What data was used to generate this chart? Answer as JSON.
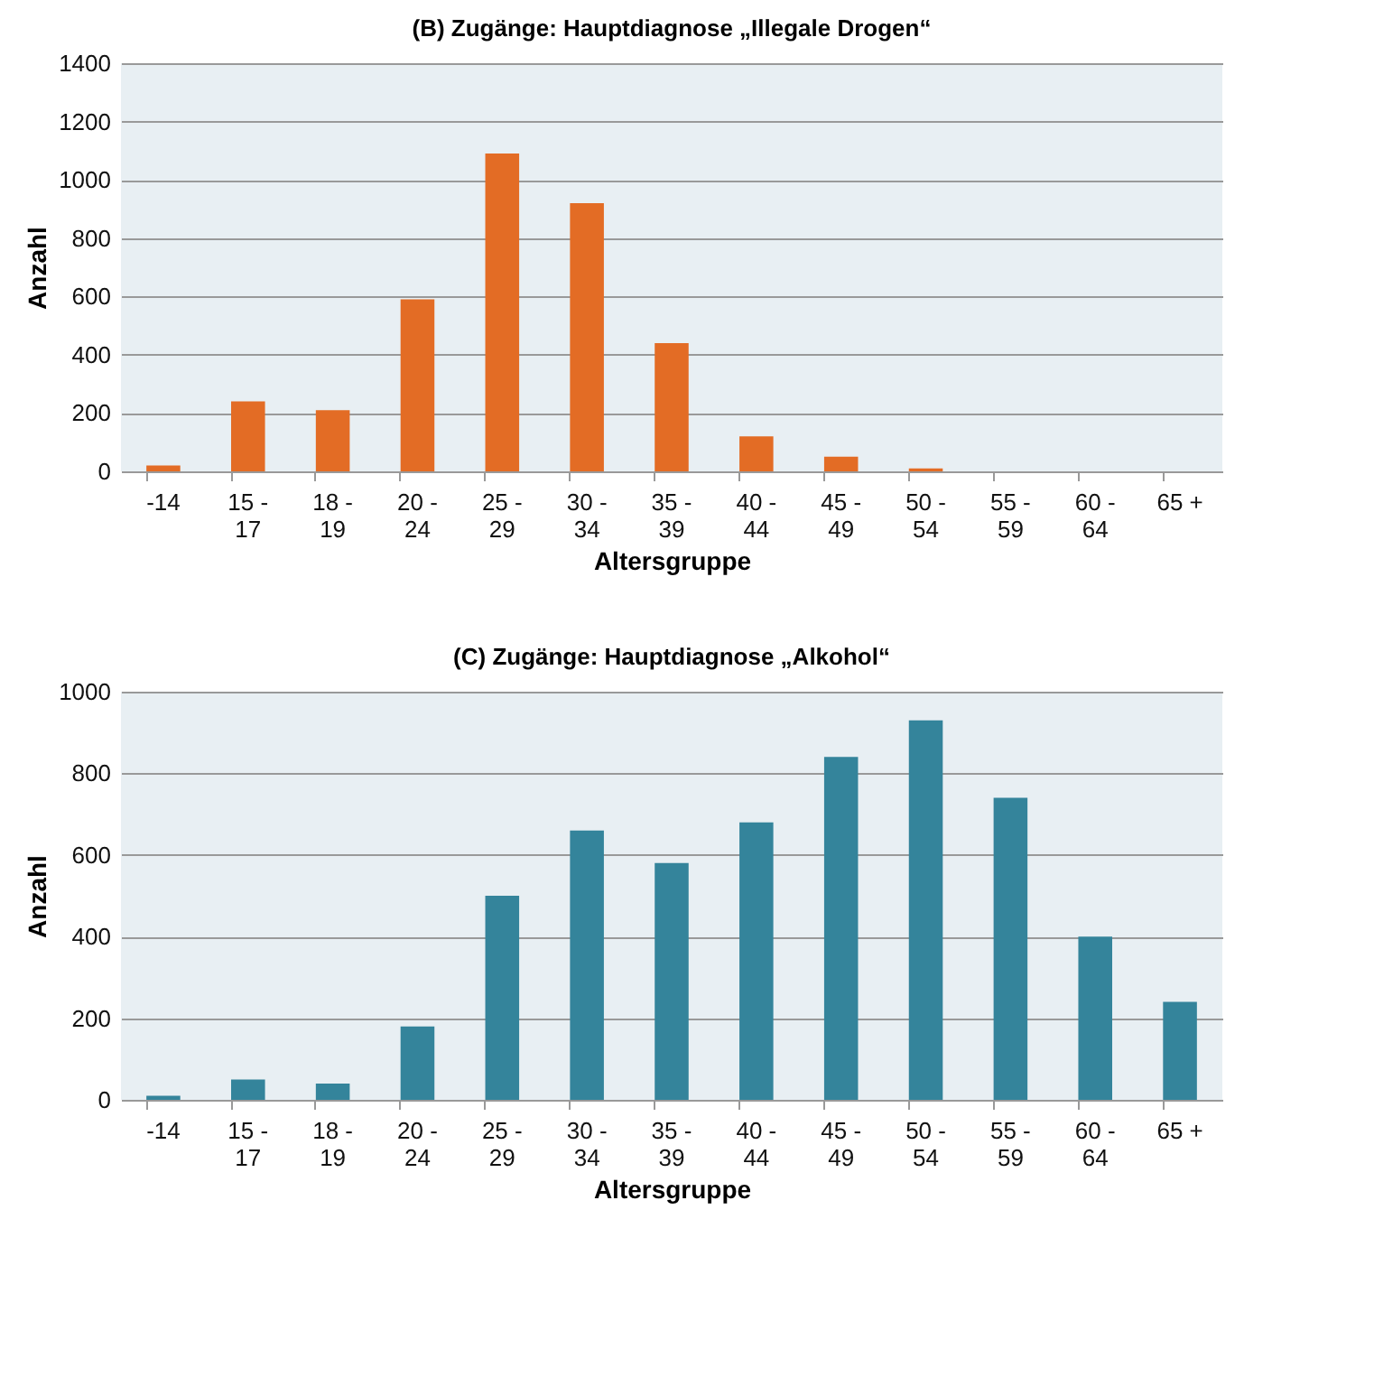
{
  "chart_data": [
    {
      "type": "bar",
      "title": "(B)  Zugänge:  Hauptdiagnose „Illegale Drogen“",
      "xlabel": "Altersgruppe",
      "ylabel": "Anzahl",
      "categories": [
        "-14",
        "15 - 17",
        "18 - 19",
        "20 - 24",
        "25 - 29",
        "30 - 34",
        "35 - 39",
        "40 - 44",
        "45 - 49",
        "50 - 54",
        "55 - 59",
        "60 - 64",
        "65 +"
      ],
      "values": [
        20,
        240,
        210,
        590,
        1090,
        920,
        440,
        120,
        50,
        10,
        0,
        0,
        0
      ],
      "color": "#e36c25",
      "ylim": [
        0,
        1400
      ],
      "yticks": [
        0,
        200,
        400,
        600,
        800,
        1000,
        1200,
        1400
      ],
      "grid": "y"
    },
    {
      "type": "bar",
      "title": "(C)  Zugänge:  Hauptdiagnose „Alkohol“",
      "xlabel": "Altersgruppe",
      "ylabel": "Anzahl",
      "categories": [
        "-14",
        "15 - 17",
        "18 - 19",
        "20 - 24",
        "25 - 29",
        "30 - 34",
        "35 - 39",
        "40 - 44",
        "45 - 49",
        "50 - 54",
        "55 - 59",
        "60 - 64",
        "65 +"
      ],
      "values": [
        10,
        50,
        40,
        180,
        500,
        660,
        580,
        680,
        840,
        930,
        740,
        400,
        240
      ],
      "color": "#34849b",
      "ylim": [
        0,
        1000
      ],
      "yticks": [
        0,
        200,
        400,
        600,
        800,
        1000
      ],
      "grid": "y"
    }
  ]
}
